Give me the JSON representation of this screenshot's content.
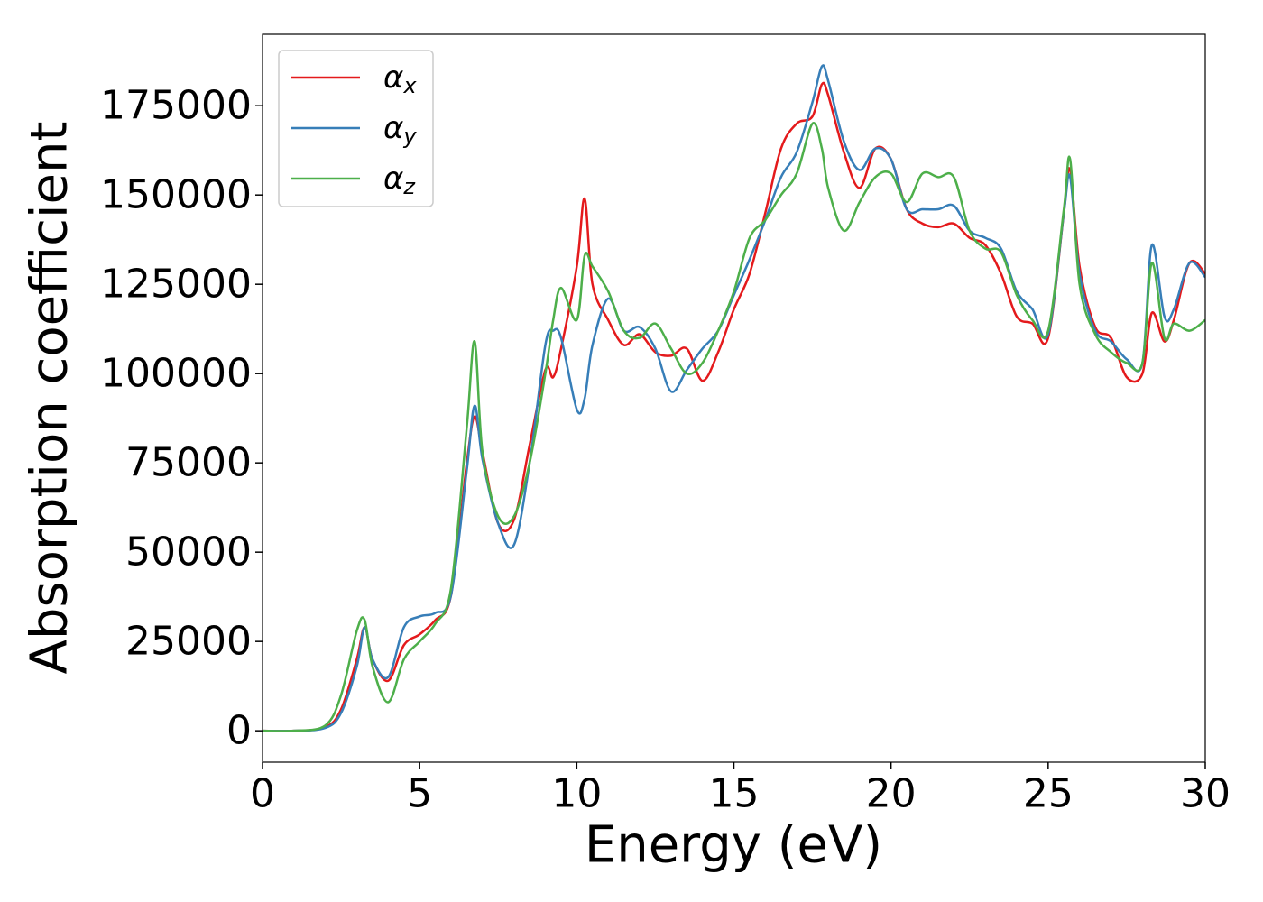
{
  "chart_data": {
    "type": "line",
    "xlabel": "Energy (eV)",
    "ylabel": "Absorption coefficient",
    "x": [
      0,
      1,
      2,
      2.5,
      3,
      3.25,
      3.5,
      4,
      4.5,
      5,
      5.5,
      6,
      6.5,
      6.75,
      7,
      7.5,
      8,
      8.5,
      9,
      9.25,
      9.5,
      10,
      10.25,
      10.5,
      11,
      11.5,
      12,
      12.5,
      13,
      13.5,
      14,
      14.5,
      15,
      15.5,
      16,
      16.5,
      17,
      17.5,
      17.8,
      18,
      18.5,
      19,
      19.5,
      20,
      20.5,
      21,
      21.5,
      22,
      22.5,
      23,
      23.5,
      24,
      24.5,
      25,
      25.5,
      25.7,
      26,
      26.5,
      27,
      27.5,
      28,
      28.3,
      28.7,
      29,
      29.5,
      30
    ],
    "series": [
      {
        "name": "αx",
        "color": "#e41a1c",
        "values": [
          0,
          0,
          1000,
          6000,
          20000,
          29000,
          20000,
          14000,
          24000,
          27000,
          31000,
          38000,
          75000,
          88000,
          78000,
          58000,
          59000,
          80000,
          101000,
          99000,
          107000,
          130000,
          149000,
          125000,
          115000,
          108000,
          111000,
          106000,
          105000,
          107000,
          98000,
          106000,
          118000,
          128000,
          145000,
          163000,
          170000,
          172000,
          181000,
          178000,
          162000,
          152000,
          163000,
          160000,
          146000,
          142000,
          141000,
          142000,
          138000,
          136000,
          128000,
          116000,
          114000,
          110000,
          145000,
          157000,
          130000,
          113000,
          110000,
          99000,
          100000,
          117000,
          109000,
          115000,
          131000,
          128000
        ]
      },
      {
        "name": "αy",
        "color": "#377eb8",
        "values": [
          0,
          0,
          800,
          5000,
          18000,
          29000,
          20000,
          15000,
          29000,
          32000,
          33000,
          38000,
          73000,
          91000,
          76000,
          58000,
          52000,
          75000,
          108000,
          112000,
          110000,
          90000,
          93000,
          108000,
          121000,
          112000,
          113000,
          107000,
          95000,
          101000,
          107000,
          112000,
          122000,
          132000,
          143000,
          155000,
          162000,
          176000,
          186000,
          182000,
          165000,
          157000,
          163000,
          160000,
          146000,
          146000,
          146000,
          147000,
          140000,
          138000,
          135000,
          123000,
          118000,
          111000,
          145000,
          155000,
          128000,
          112000,
          109000,
          104000,
          103000,
          136000,
          116000,
          118000,
          131000,
          127000
        ]
      },
      {
        "name": "αz",
        "color": "#4daf4a",
        "values": [
          0,
          0,
          1500,
          10000,
          28000,
          31000,
          18000,
          8000,
          20000,
          25000,
          30000,
          40000,
          85000,
          109000,
          78000,
          60000,
          60000,
          75000,
          100000,
          115000,
          124000,
          115000,
          133000,
          130000,
          123000,
          112000,
          110000,
          114000,
          107000,
          100000,
          103000,
          112000,
          123000,
          138000,
          143000,
          150000,
          156000,
          170000,
          163000,
          152000,
          140000,
          148000,
          155000,
          156000,
          148000,
          156000,
          155000,
          155000,
          140000,
          135000,
          134000,
          122000,
          115000,
          112000,
          146000,
          160000,
          125000,
          111000,
          106000,
          103000,
          103000,
          131000,
          110000,
          114000,
          112000,
          115000
        ]
      }
    ],
    "xlim": [
      0,
      30
    ],
    "xticks": [
      0,
      5,
      10,
      15,
      20,
      25,
      30
    ],
    "ylim": [
      -8800,
      195000
    ],
    "yticks": [
      0,
      25000,
      50000,
      75000,
      100000,
      125000,
      150000,
      175000
    ],
    "legend": "upper left"
  }
}
